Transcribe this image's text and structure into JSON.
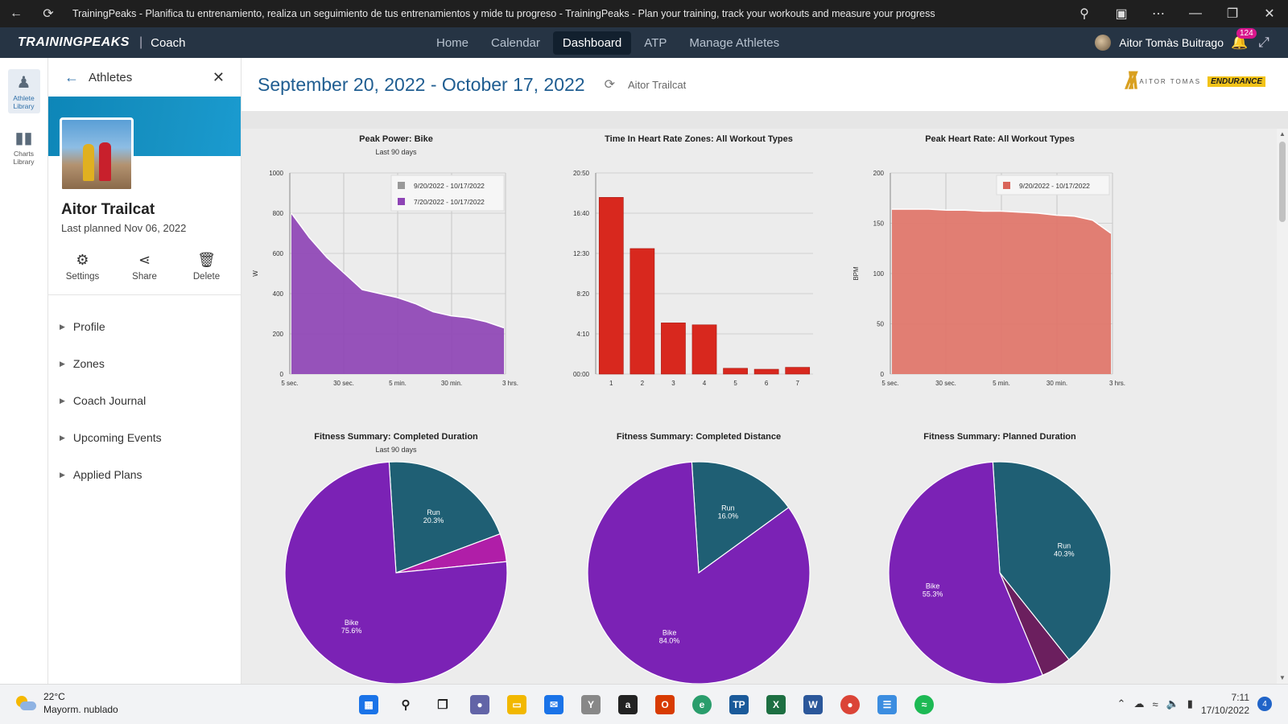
{
  "browser": {
    "title": "TrainingPeaks - Planifica tu entrenamiento, realiza un seguimiento de tus entrenamientos y mide tu progreso - TrainingPeaks - Plan your training, track your workouts and measure your progress"
  },
  "appnav": {
    "brand": "TRAININGPEAKS",
    "sep": "|",
    "product": "Coach",
    "items": [
      {
        "label": "Home"
      },
      {
        "label": "Calendar"
      },
      {
        "label": "Dashboard"
      },
      {
        "label": "ATP"
      },
      {
        "label": "Manage Athletes"
      }
    ],
    "active_item": "Dashboard",
    "user": "Aitor Tomàs Buitrago",
    "notifications": "124"
  },
  "rail": {
    "items": [
      {
        "label": "Athlete Library",
        "icon": "athlete-library-icon"
      },
      {
        "label": "Charts Library",
        "icon": "charts-library-icon"
      }
    ]
  },
  "panel": {
    "title": "Athletes",
    "athlete_name": "Aitor Trailcat",
    "last_planned": "Last planned Nov 06, 2022",
    "actions": [
      {
        "label": "Settings",
        "icon": "gear-icon"
      },
      {
        "label": "Share",
        "icon": "share-icon"
      },
      {
        "label": "Delete",
        "icon": "trash-icon"
      }
    ],
    "menu": [
      "Profile",
      "Zones",
      "Coach Journal",
      "Upcoming Events",
      "Applied Plans"
    ]
  },
  "dashboard": {
    "date_range": "September 20, 2022 - October 17, 2022",
    "athlete": "Aitor Trailcat",
    "logo_text": "AITOR TOMAS",
    "logo_badge": "ENDURANCE"
  },
  "chart_data": [
    {
      "type": "area",
      "title": "Peak Power: Bike",
      "subtitle": "Last 90 days",
      "ylabel": "W",
      "ylim": [
        0,
        1000
      ],
      "yticks": [
        "0",
        "200",
        "400",
        "600",
        "800",
        "1000"
      ],
      "xticks": [
        "5 sec.",
        "30 sec.",
        "5 min.",
        "30 min.",
        "3 hrs."
      ],
      "legend": [
        "9/20/2022 - 10/17/2022",
        "7/20/2022 - 10/17/2022"
      ],
      "legend_colors": [
        "#999999",
        "#8e44b5"
      ],
      "legend_position": "top-right",
      "color": "#8e44b5",
      "series": [
        {
          "name": "7/20/2022 - 10/17/2022",
          "values": [
            800,
            680,
            580,
            500,
            420,
            400,
            380,
            350,
            310,
            290,
            280,
            260,
            230
          ]
        }
      ]
    },
    {
      "type": "bar",
      "title": "Time In Heart Rate Zones: All Workout Types",
      "ylim": [
        0,
        20.83
      ],
      "yticks": [
        "00:00",
        "4:10",
        "8:20",
        "12:30",
        "16:40",
        "20:50"
      ],
      "categories": [
        "1",
        "2",
        "3",
        "4",
        "5",
        "6",
        "7"
      ],
      "values": [
        18.3,
        13.0,
        5.3,
        5.1,
        0.6,
        0.5,
        0.7
      ],
      "color": "#d8281e"
    },
    {
      "type": "area",
      "title": "Peak Heart Rate: All Workout Types",
      "ylabel": "BPM",
      "ylim": [
        0,
        200
      ],
      "yticks": [
        "0",
        "50",
        "100",
        "150",
        "200"
      ],
      "xticks": [
        "5 sec.",
        "30 sec.",
        "5 min.",
        "30 min.",
        "3 hrs."
      ],
      "legend": [
        "9/20/2022 - 10/17/2022"
      ],
      "legend_colors": [
        "#d96459"
      ],
      "legend_position": "top-right",
      "color": "#e07468",
      "series": [
        {
          "name": "9/20/2022 - 10/17/2022",
          "values": [
            164,
            164,
            164,
            163,
            163,
            162,
            162,
            161,
            160,
            158,
            157,
            153,
            140
          ]
        }
      ]
    },
    {
      "type": "pie",
      "title": "Fitness Summary: Completed Duration",
      "subtitle": "Last 90 days",
      "slices": [
        {
          "label": "Run",
          "pct_label": "20.3%",
          "value": 20.3,
          "color": "#1f5f74"
        },
        {
          "label": "",
          "pct_label": "",
          "value": 4.1,
          "color": "#b01ea8"
        },
        {
          "label": "Bike",
          "pct_label": "75.6%",
          "value": 75.6,
          "color": "#7b22b5"
        }
      ]
    },
    {
      "type": "pie",
      "title": "Fitness Summary: Completed Distance",
      "slices": [
        {
          "label": "Run",
          "pct_label": "16.0%",
          "value": 16.0,
          "color": "#1f5f74"
        },
        {
          "label": "Bike",
          "pct_label": "84.0%",
          "value": 84.0,
          "color": "#7b22b5"
        }
      ]
    },
    {
      "type": "pie",
      "title": "Fitness Summary: Planned Duration",
      "slices": [
        {
          "label": "Run",
          "pct_label": "40.3%",
          "value": 40.3,
          "color": "#1f5f74"
        },
        {
          "label": "",
          "pct_label": "",
          "value": 4.4,
          "color": "#6b1f5e"
        },
        {
          "label": "Bike",
          "pct_label": "55.3%",
          "value": 55.3,
          "color": "#7b22b5"
        }
      ]
    }
  ],
  "taskbar": {
    "temperature": "22°C",
    "weather": "Mayorm. nublado",
    "time": "7:11",
    "date": "17/10/2022",
    "notifications": "4"
  }
}
